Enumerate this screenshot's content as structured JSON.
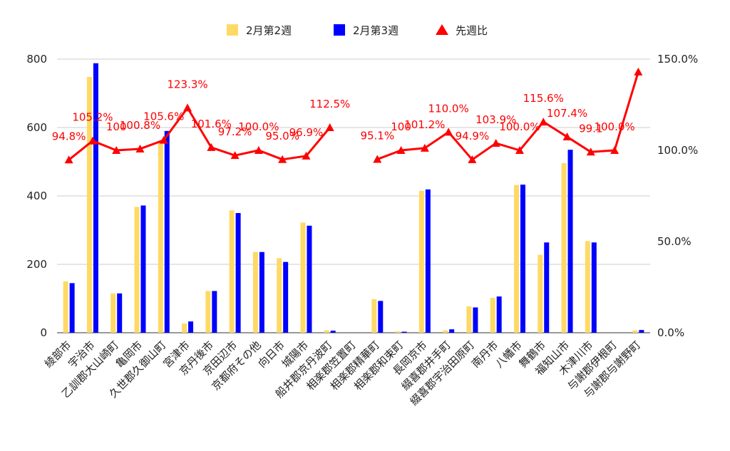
{
  "chart_data": {
    "type": "bar",
    "legend_position": "top",
    "grid": true,
    "categories": [
      "綾部市",
      "宇治市",
      "乙訓郡大山崎町",
      "亀岡市",
      "久世郡久御山町",
      "宮津市",
      "京丹後市",
      "京田辺市",
      "京都府その他",
      "向日市",
      "城陽市",
      "船井郡京丹波町",
      "相楽郡笠置町",
      "相楽郡精華町",
      "相楽郡和束町",
      "長岡京市",
      "綴喜郡井手町",
      "綴喜郡宇治田原町",
      "南丹市",
      "八幡市",
      "舞鶴市",
      "福知山市",
      "木津川市",
      "与謝郡伊根町",
      "与謝郡与謝野町"
    ],
    "y_left": {
      "min": 0,
      "max": 800,
      "ticks": [
        "0",
        "200",
        "400",
        "600",
        "800"
      ]
    },
    "y_right": {
      "min": 0,
      "max": 150,
      "ticks": [
        "0.0%",
        "50.0%",
        "100.0%",
        "150.0%"
      ]
    },
    "series": [
      {
        "name": "2月第2週",
        "kind": "bar",
        "axis": "left",
        "color": "#ffd966",
        "values": [
          150,
          748,
          115,
          368,
          560,
          27,
          122,
          358,
          236,
          218,
          322,
          7,
          0,
          98,
          4,
          415,
          7,
          77,
          102,
          432,
          228,
          496,
          268,
          0,
          7
        ]
      },
      {
        "name": "2月第3週",
        "kind": "bar",
        "axis": "left",
        "color": "#0000ff",
        "values": [
          145,
          788,
          115,
          372,
          590,
          33,
          122,
          350,
          236,
          207,
          313,
          6,
          0,
          93,
          3,
          419,
          10,
          74,
          106,
          433,
          264,
          535,
          264,
          0,
          8
        ]
      },
      {
        "name": "先週比",
        "kind": "line",
        "axis": "right",
        "color": "#ff0000",
        "values": [
          94.8,
          105.2,
          100,
          100.8,
          105.6,
          123.3,
          101.6,
          97.2,
          100.0,
          95.0,
          96.9,
          112.5,
          null,
          95.1,
          100,
          101.2,
          110.0,
          94.9,
          103.9,
          100.0,
          115.6,
          107.4,
          99.1,
          100.0,
          143
        ],
        "labels": [
          "94.8%",
          "105.2%",
          "100",
          "100.8%",
          "105.6%",
          "123.3%",
          "101.6%",
          "97.2%",
          "100.0%",
          "95.0%",
          "96.9%",
          "112.5%",
          "",
          "95.1%",
          "100",
          "101.2%",
          "110.0%",
          "94.9%",
          "103.9%",
          "100.0%",
          "115.6%",
          "107.4%",
          "99.1",
          "100.0%",
          ""
        ]
      }
    ]
  }
}
